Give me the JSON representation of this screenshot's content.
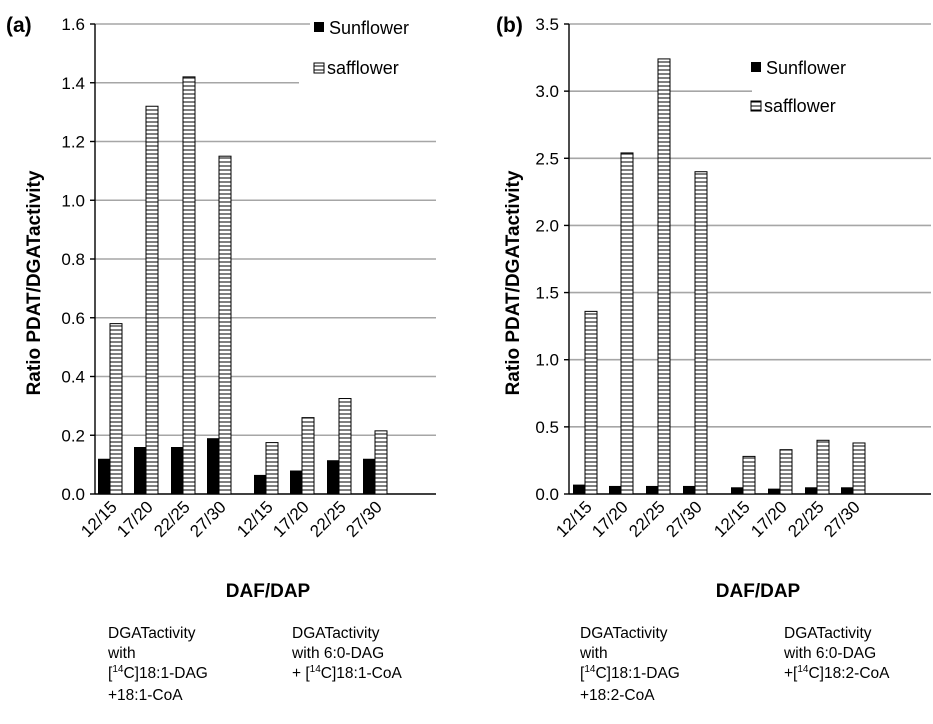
{
  "chart_data": [
    {
      "type": "bar",
      "panel_label": "(a)",
      "ylabel": "Ratio PDAT/DGATactivity",
      "xlabel": "DAF/DAP",
      "ylim": [
        0,
        1.6
      ],
      "yticks": [
        "0.0",
        "0.2",
        "0.4",
        "0.6",
        "0.8",
        "1.0",
        "1.2",
        "1.4",
        "1.6"
      ],
      "grid": true,
      "legend_position": "top-right",
      "categories": [
        "12/15",
        "17/20",
        "22/25",
        "27/30",
        "12/15",
        "17/20",
        "22/25",
        "27/30"
      ],
      "series": [
        {
          "name": "Sunflower",
          "values": [
            0.12,
            0.16,
            0.16,
            0.19,
            0.065,
            0.08,
            0.115,
            0.12
          ],
          "color": "#000000"
        },
        {
          "name": "safflower",
          "values": [
            0.58,
            1.32,
            1.42,
            1.15,
            0.175,
            0.26,
            0.325,
            0.215
          ],
          "color": "#ffffff"
        }
      ],
      "group_notes": [
        {
          "lines": [
            "DGATactivity",
            "with",
            "[14C]18:1-DAG",
            "+18:1-CoA"
          ]
        },
        {
          "lines": [
            "DGATactivity",
            "with 6:0-DAG",
            "+ [14C]18:1-CoA"
          ]
        }
      ]
    },
    {
      "type": "bar",
      "panel_label": "(b)",
      "ylabel": "Ratio PDAT/DGATactivity",
      "xlabel": "DAF/DAP",
      "ylim": [
        0,
        3.5
      ],
      "yticks": [
        "0.0",
        "0.5",
        "1.0",
        "1.5",
        "2.0",
        "2.5",
        "3.0",
        "3.5"
      ],
      "grid": true,
      "legend_position": "top-right",
      "categories": [
        "12/15",
        "17/20",
        "22/25",
        "27/30",
        "12/15",
        "17/20",
        "22/25",
        "27/30"
      ],
      "series": [
        {
          "name": "Sunflower",
          "values": [
            0.07,
            0.06,
            0.06,
            0.06,
            0.05,
            0.04,
            0.05,
            0.05
          ],
          "color": "#000000"
        },
        {
          "name": "safflower",
          "values": [
            1.36,
            2.54,
            3.24,
            2.4,
            0.28,
            0.33,
            0.4,
            0.38
          ],
          "color": "#ffffff"
        }
      ],
      "group_notes": [
        {
          "lines": [
            "DGATactivity",
            "with",
            "[14C]18:1-DAG",
            "+18:2-CoA"
          ]
        },
        {
          "lines": [
            "DGATactivity",
            "with 6:0-DAG",
            "+[14C]18:2-CoA"
          ]
        }
      ]
    }
  ]
}
